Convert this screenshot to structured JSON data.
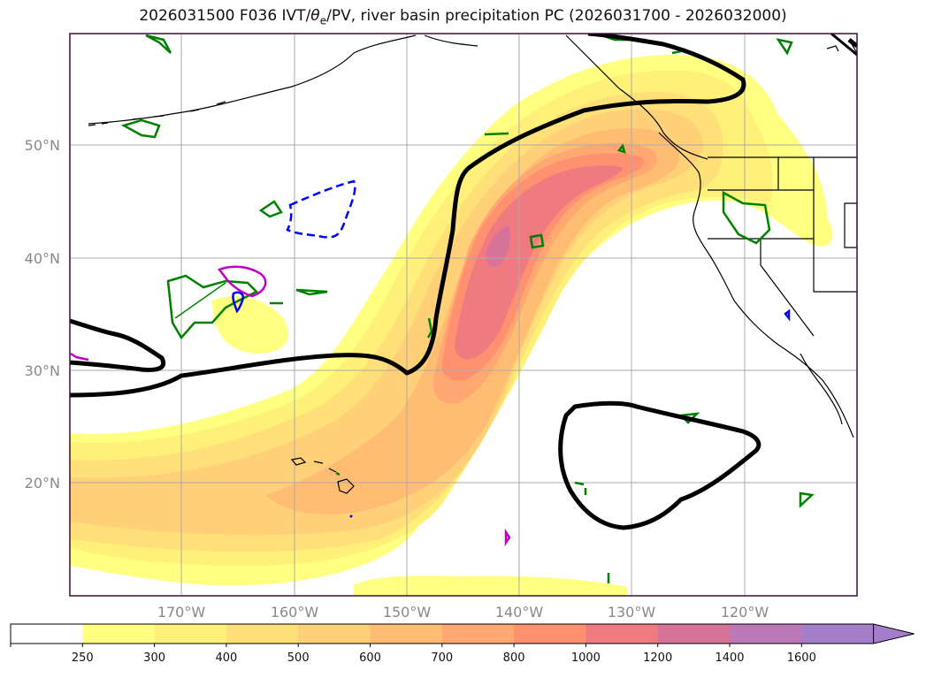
{
  "title": {
    "prefix": "2026031500 F036 IVT/",
    "theta": "θ",
    "theta_sub": "e",
    "suffix": "/PV, river basin precipitation PC (2026031700 - 2026032000)"
  },
  "axes": {
    "lat_labels": [
      "50°N",
      "40°N",
      "30°N",
      "20°N"
    ],
    "lon_labels": [
      "170°W",
      "160°W",
      "150°W",
      "140°W",
      "130°W",
      "120°W"
    ]
  },
  "colorbar": {
    "levels": [
      "250",
      "300",
      "400",
      "500",
      "600",
      "700",
      "800",
      "1000",
      "1200",
      "1400",
      "1600"
    ],
    "colors": [
      "#ffffff",
      "#ffff80",
      "#fff07a",
      "#ffe078",
      "#ffd077",
      "#ffbd74",
      "#ffa872",
      "#ff9070",
      "#f07a80",
      "#d57498",
      "#bd78b8",
      "#a47ec8"
    ],
    "extend": "max"
  },
  "colors": {
    "geo_line": "#000000",
    "pv_contour": "#008000",
    "neg_contour": "#0000ff",
    "magenta_contour": "#c000c0",
    "theta_contour": "#000000",
    "grid": "#aaaaaa",
    "axis_text": "#888888"
  }
}
